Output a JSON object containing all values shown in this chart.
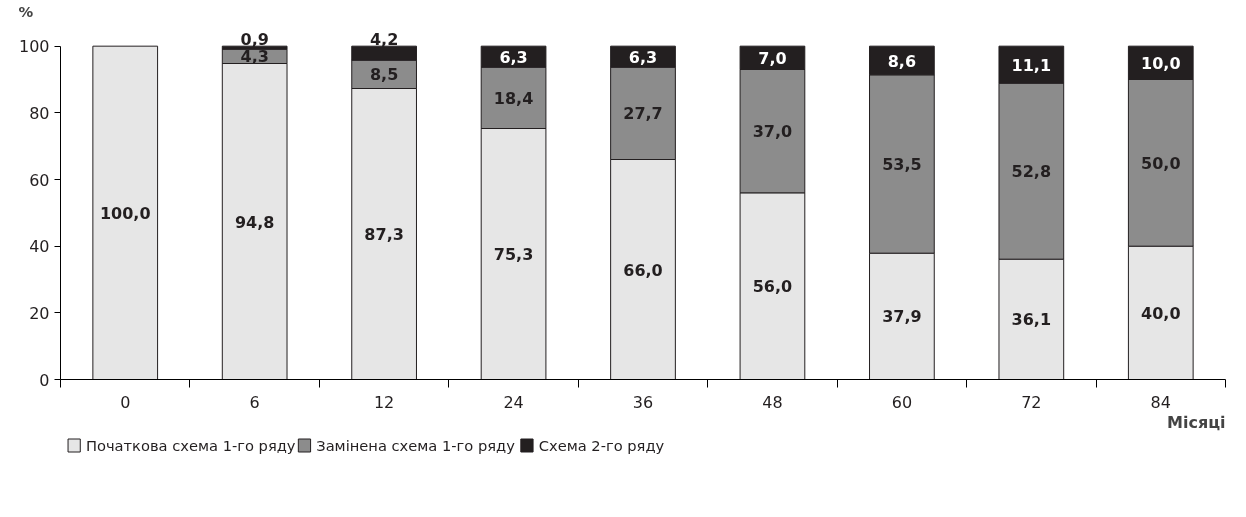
{
  "chart_data": {
    "type": "bar",
    "stacked": true,
    "categories": [
      "0",
      "6",
      "12",
      "24",
      "36",
      "48",
      "60",
      "72",
      "84"
    ],
    "series": [
      {
        "name": "Початкова схема 1-го ряду",
        "color": "#e6e6e6",
        "values": [
          100.0,
          94.8,
          87.3,
          75.3,
          66.0,
          56.0,
          37.9,
          36.1,
          40.0
        ],
        "value_labels": [
          "100,0",
          "94,8",
          "87,3",
          "75,3",
          "66,0",
          "56,0",
          "37,9",
          "36,1",
          "40,0"
        ]
      },
      {
        "name": "Замінена схема 1-го ряду",
        "color": "#8c8c8c",
        "values": [
          null,
          4.3,
          8.5,
          18.4,
          27.7,
          37.0,
          53.5,
          52.8,
          50.0
        ],
        "value_labels": [
          null,
          "4,3",
          "8,5",
          "18,4",
          "27,7",
          "37,0",
          "53,5",
          "52,8",
          "50,0"
        ]
      },
      {
        "name": "Схема 2-го ряду",
        "color": "#231f20",
        "values": [
          null,
          0.9,
          4.2,
          6.3,
          6.3,
          7.0,
          8.6,
          11.1,
          10.0
        ],
        "value_labels": [
          null,
          "0,9",
          "4,2",
          "6,3",
          "6,3",
          "7,0",
          "8,6",
          "11,1",
          "10,0"
        ]
      }
    ],
    "ylim": [
      0,
      100
    ],
    "yticks": [
      0,
      20,
      40,
      60,
      80,
      100
    ],
    "ylabel": "%",
    "xlabel": "Місяці",
    "legend": "bottom",
    "grid": false
  }
}
